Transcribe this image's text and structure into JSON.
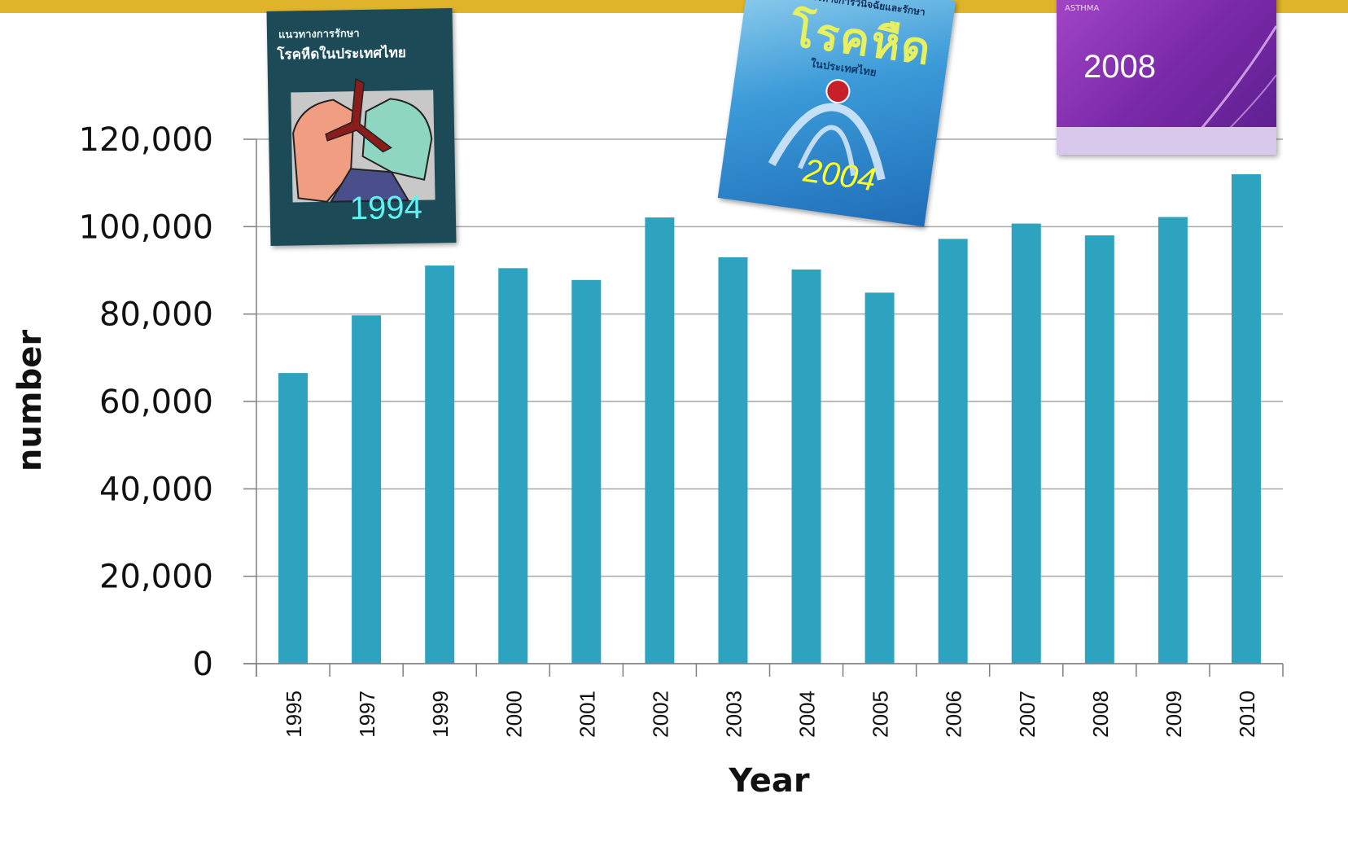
{
  "colors": {
    "accent_band": "#dfb42a",
    "bar": "#2da3c0",
    "grid": "#a6a6a6",
    "axis": "#808080"
  },
  "covers": [
    {
      "year_label": "1994",
      "title_small": "แนวทางการรักษา",
      "title_big": "โรคหืดในประเทศไทย"
    },
    {
      "year_label": "2004",
      "title_small": "แนวทางการวินิจฉัยและรักษา",
      "title_big": "โรคหืด",
      "title_sub": "ในประเทศไทย"
    },
    {
      "year_label": "2008",
      "side_text": "ASTHMA"
    }
  ],
  "chart_data": {
    "type": "bar",
    "title": "",
    "xlabel": "Year",
    "ylabel": "number",
    "categories": [
      "1995",
      "1997",
      "1999",
      "2000",
      "2001",
      "2002",
      "2003",
      "2004",
      "2005",
      "2006",
      "2007",
      "2008",
      "2009",
      "2010"
    ],
    "values": [
      66500,
      79700,
      91100,
      90500,
      87800,
      102100,
      93000,
      90200,
      84900,
      97200,
      100700,
      98000,
      102200,
      112000
    ],
    "ylim": [
      0,
      120000
    ],
    "yticks": [
      0,
      20000,
      40000,
      60000,
      80000,
      100000,
      120000
    ],
    "ytick_labels": [
      "0",
      "20,000",
      "40,000",
      "60,000",
      "80,000",
      "100,000",
      "120,000"
    ],
    "grid": true,
    "legend": "none"
  }
}
